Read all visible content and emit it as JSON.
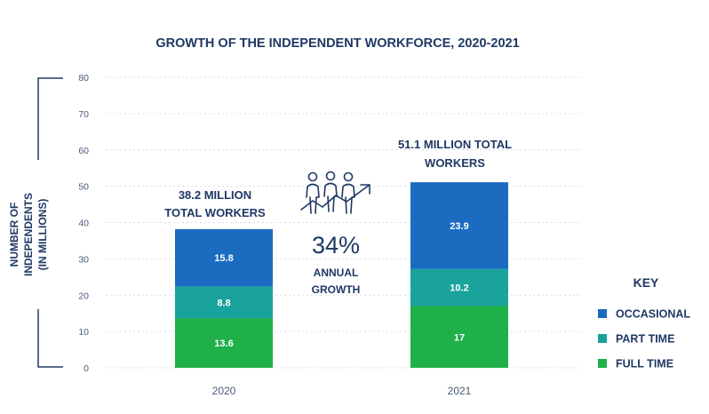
{
  "chart_data": {
    "type": "bar",
    "stacked": true,
    "title": "GROWTH OF THE INDEPENDENT WORKFORCE, 2020-2021",
    "ylabel_line1": "NUMBER OF",
    "ylabel_line2": "INDEPENDENTS",
    "ylabel_line3": "(IN MILLIONS)",
    "ylim": [
      0,
      80
    ],
    "yticks": [
      "0",
      "10",
      "20",
      "30",
      "40",
      "50",
      "60",
      "70",
      "80"
    ],
    "categories": [
      "2020",
      "2021"
    ],
    "series": [
      {
        "name": "FULL TIME",
        "color": "#1fb04a",
        "values": [
          13.6,
          17
        ],
        "labels": [
          "13.6",
          "17"
        ]
      },
      {
        "name": "PART TIME",
        "color": "#1aa39c",
        "values": [
          8.8,
          10.2
        ],
        "labels": [
          "8.8",
          "10.2"
        ]
      },
      {
        "name": "OCCASIONAL",
        "color": "#1b6cc1",
        "values": [
          15.8,
          23.9
        ],
        "labels": [
          "15.8",
          "23.9"
        ]
      }
    ],
    "totals": [
      {
        "line1": "38.2 MILLION",
        "line2": "TOTAL WORKERS"
      },
      {
        "line1": "51.1 MILLION TOTAL",
        "line2": "WORKERS"
      }
    ],
    "growth": {
      "percent": "34%",
      "line1": "ANNUAL",
      "line2": "GROWTH"
    },
    "legend": {
      "title": "KEY",
      "placement": "right",
      "items": [
        {
          "label": "OCCASIONAL",
          "color": "#1b6cc1"
        },
        {
          "label": "PART TIME",
          "color": "#1aa39c"
        },
        {
          "label": "FULL TIME",
          "color": "#1fb04a"
        }
      ]
    },
    "grid": true
  },
  "colors": {
    "text": "#1f3864",
    "axis": "#4a5a78",
    "grid": "#d7dce6",
    "icon": "#1f3864"
  },
  "icons": {
    "growth": "people-growth-arrow-icon"
  }
}
